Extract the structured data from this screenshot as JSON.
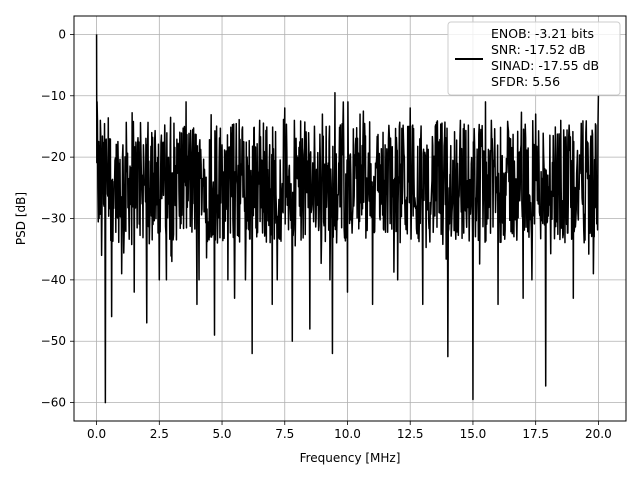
{
  "chart_data": {
    "type": "line",
    "title": "",
    "xlabel": "Frequency [MHz]",
    "ylabel": "PSD [dB]",
    "xlim": [
      -0.9,
      21.1
    ],
    "ylim": [
      -63,
      3
    ],
    "x_ticks": [
      0.0,
      2.5,
      5.0,
      7.5,
      10.0,
      12.5,
      15.0,
      17.5,
      20.0
    ],
    "x_tick_labels": [
      "0.0",
      "2.5",
      "5.0",
      "7.5",
      "10.0",
      "12.5",
      "15.0",
      "17.5",
      "20.0"
    ],
    "y_ticks": [
      0,
      -10,
      -20,
      -30,
      -40,
      -50,
      -60
    ],
    "y_tick_labels": [
      "0",
      "−10",
      "−20",
      "−30",
      "−40",
      "−50",
      "−60"
    ],
    "grid": true,
    "legend_position": "top-right",
    "legend_lines": [
      "ENOB: -3.21 bits",
      "SNR: -17.52 dB",
      "SINAD: -17.55 dB",
      "SFDR: 5.56"
    ],
    "series": [
      {
        "name": "ENOB: -3.21 bits\nSNR: -17.52 dB\nSINAD: -17.55 dB\nSFDR: 5.56",
        "color": "#000000",
        "description": "dense noise-like PSD, mostly between -35 and -13 dB",
        "x": [
          0.0,
          0.02,
          0.05,
          0.1,
          0.15,
          0.2,
          0.25,
          0.3,
          0.35,
          0.4,
          0.5,
          0.6,
          0.7,
          0.8,
          1.0,
          1.2,
          1.5,
          1.6,
          2.0,
          2.2,
          2.5,
          2.7,
          3.0,
          3.5,
          4.0,
          4.3,
          4.7,
          5.0,
          5.5,
          6.0,
          6.2,
          6.5,
          7.0,
          7.5,
          7.8,
          8.2,
          8.5,
          9.0,
          9.4,
          9.5,
          10.0,
          10.5,
          11.0,
          11.5,
          12.0,
          12.5,
          13.0,
          13.5,
          14.0,
          14.5,
          15.0,
          15.5,
          16.0,
          16.5,
          17.0,
          17.5,
          17.9,
          18.5,
          19.0,
          19.5,
          19.8,
          20.0
        ],
        "y": [
          0.0,
          -11.0,
          -25.0,
          -30.0,
          -14.0,
          -36.0,
          -20.0,
          -28.0,
          -60.0,
          -22.0,
          -17.0,
          -46.0,
          -24.0,
          -18.0,
          -39.0,
          -20.0,
          -42.0,
          -21.0,
          -47.0,
          -16.0,
          -40.0,
          -20.0,
          -37.0,
          -15.0,
          -44.0,
          -22.0,
          -49.0,
          -18.0,
          -43.0,
          -20.0,
          -52.0,
          -14.0,
          -44.0,
          -12.0,
          -50.0,
          -17.0,
          -48.0,
          -13.0,
          -52.0,
          -9.5,
          -42.0,
          -13.0,
          -44.0,
          -18.0,
          -40.0,
          -12.0,
          -44.0,
          -15.0,
          -52.5,
          -14.0,
          -59.5,
          -11.0,
          -44.0,
          -17.0,
          -43.0,
          -13.0,
          -57.3,
          -14.0,
          -43.0,
          -16.0,
          -39.0,
          -10.0
        ]
      }
    ]
  }
}
